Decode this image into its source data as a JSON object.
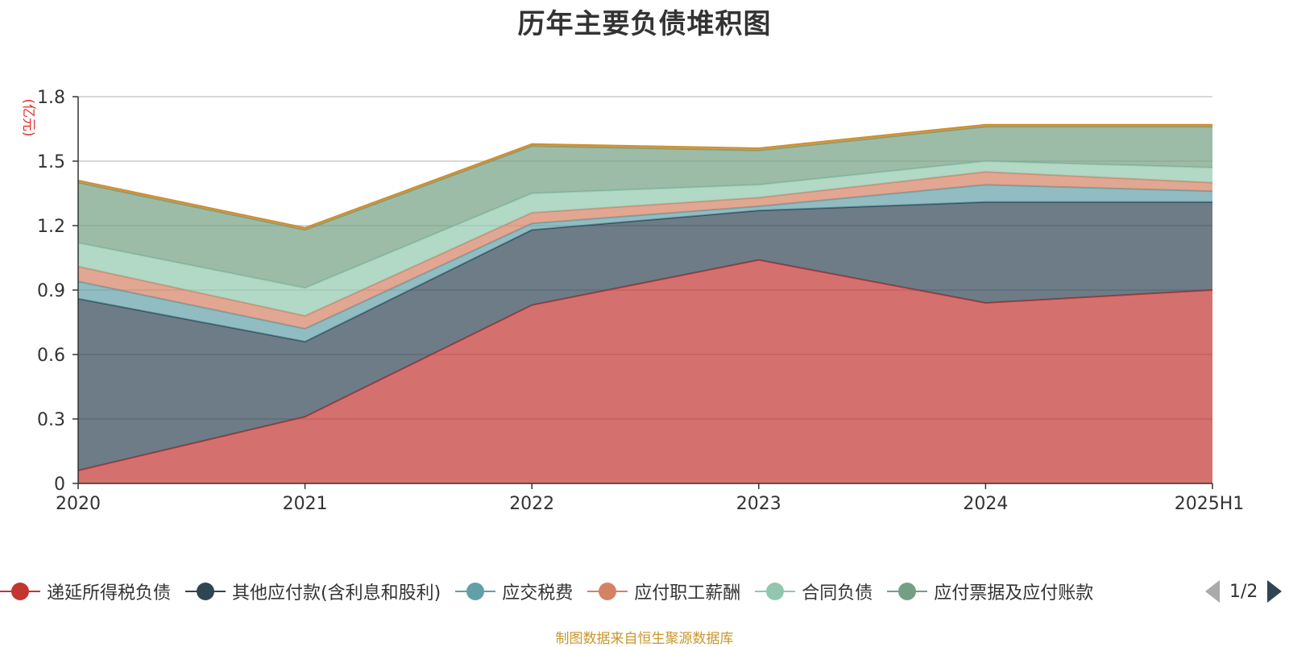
{
  "chart_data": {
    "type": "area",
    "stacked": true,
    "title": "历年主要负债堆积图",
    "ylabel": "(亿元)",
    "xlabel": "",
    "categories": [
      "2020",
      "2021",
      "2022",
      "2023",
      "2024",
      "2025H1"
    ],
    "ylim": [
      0,
      1.8
    ],
    "yticks": [
      0,
      0.3,
      0.6,
      0.9,
      1.2,
      1.5,
      1.8
    ],
    "ytick_labels": [
      "0",
      "0.3",
      "0.6",
      "0.9",
      "1.2",
      "1.5",
      "1.8"
    ],
    "grid": true,
    "legend_position": "bottom",
    "series": [
      {
        "name": "递延所得税负债",
        "color": "#c23531",
        "values": [
          0.06,
          0.31,
          0.83,
          1.04,
          0.84,
          0.9
        ]
      },
      {
        "name": "其他应付款(含利息和股利)",
        "color": "#2f4554",
        "values": [
          0.8,
          0.35,
          0.35,
          0.23,
          0.47,
          0.41
        ]
      },
      {
        "name": "应交税费",
        "color": "#61a0a8",
        "values": [
          0.08,
          0.06,
          0.03,
          0.02,
          0.08,
          0.05
        ]
      },
      {
        "name": "应付职工薪酬",
        "color": "#d48265",
        "values": [
          0.07,
          0.06,
          0.05,
          0.04,
          0.06,
          0.04
        ]
      },
      {
        "name": "合同负债",
        "color": "#91c7ae",
        "values": [
          0.11,
          0.13,
          0.09,
          0.06,
          0.05,
          0.07
        ]
      },
      {
        "name": "应付票据及应付账款",
        "color": "#749f83",
        "values": [
          0.28,
          0.27,
          0.22,
          0.16,
          0.16,
          0.19
        ]
      },
      {
        "name": "",
        "color": "#ca8622",
        "values": [
          0.01,
          0.01,
          0.01,
          0.01,
          0.01,
          0.01
        ]
      }
    ]
  },
  "legend": {
    "items": [
      {
        "label": "递延所得税负债",
        "color": "#c23531"
      },
      {
        "label": "其他应付款(含利息和股利)",
        "color": "#2f4554"
      },
      {
        "label": "应交税费",
        "color": "#61a0a8"
      },
      {
        "label": "应付职工薪酬",
        "color": "#d48265"
      },
      {
        "label": "合同负债",
        "color": "#91c7ae"
      },
      {
        "label": "应付票据及应付账款",
        "color": "#749f83"
      }
    ],
    "page_indicator": "1/2"
  },
  "footer": "制图数据来自恒生聚源数据库"
}
